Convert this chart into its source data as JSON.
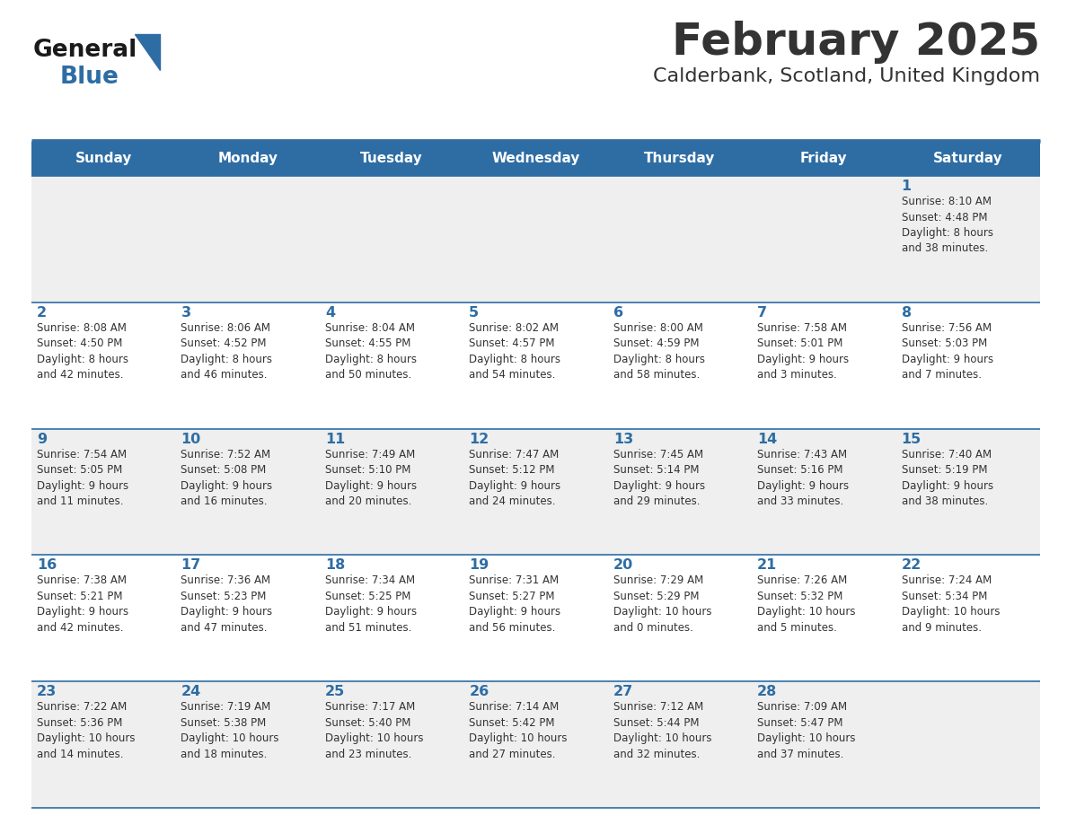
{
  "title": "February 2025",
  "subtitle": "Calderbank, Scotland, United Kingdom",
  "header_color": "#2E6DA4",
  "header_text_color": "#FFFFFF",
  "day_names": [
    "Sunday",
    "Monday",
    "Tuesday",
    "Wednesday",
    "Thursday",
    "Friday",
    "Saturday"
  ],
  "background_color": "#FFFFFF",
  "cell_bg_odd": "#EFEFEF",
  "cell_bg_even": "#FFFFFF",
  "border_color": "#2E6DA4",
  "day_num_color": "#2E6DA4",
  "text_color": "#333333",
  "logo_general_color": "#1a1a1a",
  "logo_blue_color": "#2E6DA4",
  "weeks": [
    [
      {
        "day": null,
        "info": null
      },
      {
        "day": null,
        "info": null
      },
      {
        "day": null,
        "info": null
      },
      {
        "day": null,
        "info": null
      },
      {
        "day": null,
        "info": null
      },
      {
        "day": null,
        "info": null
      },
      {
        "day": 1,
        "info": "Sunrise: 8:10 AM\nSunset: 4:48 PM\nDaylight: 8 hours\nand 38 minutes."
      }
    ],
    [
      {
        "day": 2,
        "info": "Sunrise: 8:08 AM\nSunset: 4:50 PM\nDaylight: 8 hours\nand 42 minutes."
      },
      {
        "day": 3,
        "info": "Sunrise: 8:06 AM\nSunset: 4:52 PM\nDaylight: 8 hours\nand 46 minutes."
      },
      {
        "day": 4,
        "info": "Sunrise: 8:04 AM\nSunset: 4:55 PM\nDaylight: 8 hours\nand 50 minutes."
      },
      {
        "day": 5,
        "info": "Sunrise: 8:02 AM\nSunset: 4:57 PM\nDaylight: 8 hours\nand 54 minutes."
      },
      {
        "day": 6,
        "info": "Sunrise: 8:00 AM\nSunset: 4:59 PM\nDaylight: 8 hours\nand 58 minutes."
      },
      {
        "day": 7,
        "info": "Sunrise: 7:58 AM\nSunset: 5:01 PM\nDaylight: 9 hours\nand 3 minutes."
      },
      {
        "day": 8,
        "info": "Sunrise: 7:56 AM\nSunset: 5:03 PM\nDaylight: 9 hours\nand 7 minutes."
      }
    ],
    [
      {
        "day": 9,
        "info": "Sunrise: 7:54 AM\nSunset: 5:05 PM\nDaylight: 9 hours\nand 11 minutes."
      },
      {
        "day": 10,
        "info": "Sunrise: 7:52 AM\nSunset: 5:08 PM\nDaylight: 9 hours\nand 16 minutes."
      },
      {
        "day": 11,
        "info": "Sunrise: 7:49 AM\nSunset: 5:10 PM\nDaylight: 9 hours\nand 20 minutes."
      },
      {
        "day": 12,
        "info": "Sunrise: 7:47 AM\nSunset: 5:12 PM\nDaylight: 9 hours\nand 24 minutes."
      },
      {
        "day": 13,
        "info": "Sunrise: 7:45 AM\nSunset: 5:14 PM\nDaylight: 9 hours\nand 29 minutes."
      },
      {
        "day": 14,
        "info": "Sunrise: 7:43 AM\nSunset: 5:16 PM\nDaylight: 9 hours\nand 33 minutes."
      },
      {
        "day": 15,
        "info": "Sunrise: 7:40 AM\nSunset: 5:19 PM\nDaylight: 9 hours\nand 38 minutes."
      }
    ],
    [
      {
        "day": 16,
        "info": "Sunrise: 7:38 AM\nSunset: 5:21 PM\nDaylight: 9 hours\nand 42 minutes."
      },
      {
        "day": 17,
        "info": "Sunrise: 7:36 AM\nSunset: 5:23 PM\nDaylight: 9 hours\nand 47 minutes."
      },
      {
        "day": 18,
        "info": "Sunrise: 7:34 AM\nSunset: 5:25 PM\nDaylight: 9 hours\nand 51 minutes."
      },
      {
        "day": 19,
        "info": "Sunrise: 7:31 AM\nSunset: 5:27 PM\nDaylight: 9 hours\nand 56 minutes."
      },
      {
        "day": 20,
        "info": "Sunrise: 7:29 AM\nSunset: 5:29 PM\nDaylight: 10 hours\nand 0 minutes."
      },
      {
        "day": 21,
        "info": "Sunrise: 7:26 AM\nSunset: 5:32 PM\nDaylight: 10 hours\nand 5 minutes."
      },
      {
        "day": 22,
        "info": "Sunrise: 7:24 AM\nSunset: 5:34 PM\nDaylight: 10 hours\nand 9 minutes."
      }
    ],
    [
      {
        "day": 23,
        "info": "Sunrise: 7:22 AM\nSunset: 5:36 PM\nDaylight: 10 hours\nand 14 minutes."
      },
      {
        "day": 24,
        "info": "Sunrise: 7:19 AM\nSunset: 5:38 PM\nDaylight: 10 hours\nand 18 minutes."
      },
      {
        "day": 25,
        "info": "Sunrise: 7:17 AM\nSunset: 5:40 PM\nDaylight: 10 hours\nand 23 minutes."
      },
      {
        "day": 26,
        "info": "Sunrise: 7:14 AM\nSunset: 5:42 PM\nDaylight: 10 hours\nand 27 minutes."
      },
      {
        "day": 27,
        "info": "Sunrise: 7:12 AM\nSunset: 5:44 PM\nDaylight: 10 hours\nand 32 minutes."
      },
      {
        "day": 28,
        "info": "Sunrise: 7:09 AM\nSunset: 5:47 PM\nDaylight: 10 hours\nand 37 minutes."
      },
      {
        "day": null,
        "info": null
      }
    ]
  ]
}
